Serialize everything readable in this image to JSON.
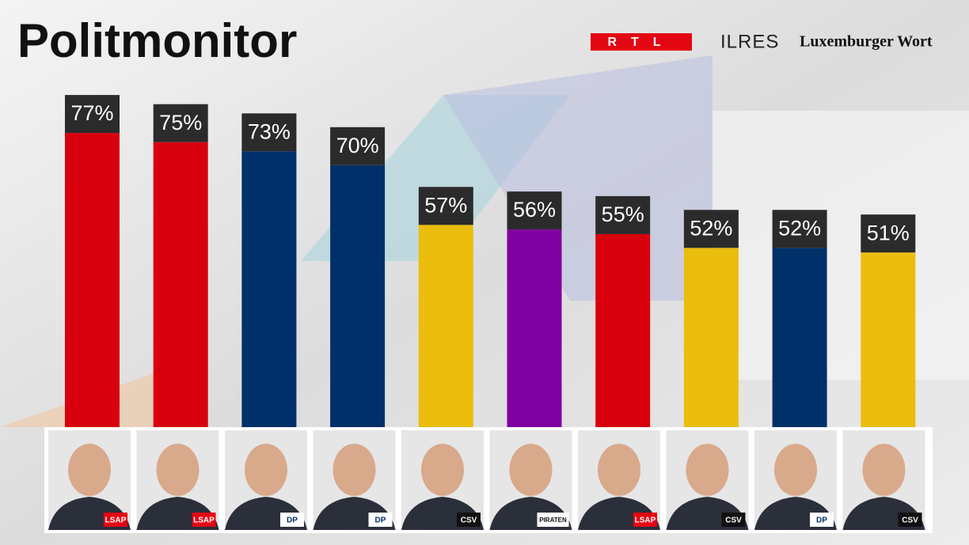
{
  "chart_data": {
    "type": "bar",
    "title": "Politmonitor",
    "sources": [
      "RTL",
      "ILRES",
      "Luxemburger Wort"
    ],
    "values": [
      77,
      75,
      73,
      70,
      57,
      56,
      55,
      52,
      52,
      51
    ],
    "value_labels": [
      "77%",
      "75%",
      "73%",
      "70%",
      "57%",
      "56%",
      "55%",
      "52%",
      "52%",
      "51%"
    ],
    "colors": [
      "#d9000d",
      "#d9000d",
      "#00306a",
      "#00306a",
      "#ebbd0d",
      "#7f00a0",
      "#d9000d",
      "#ebbd0d",
      "#00306a",
      "#ebbd0d"
    ],
    "parties": [
      "LSAP",
      "LSAP",
      "DP",
      "DP",
      "CSV",
      "PIRATEN",
      "LSAP",
      "CSV",
      "DP",
      "CSV"
    ],
    "ylim": [
      13,
      85
    ]
  }
}
